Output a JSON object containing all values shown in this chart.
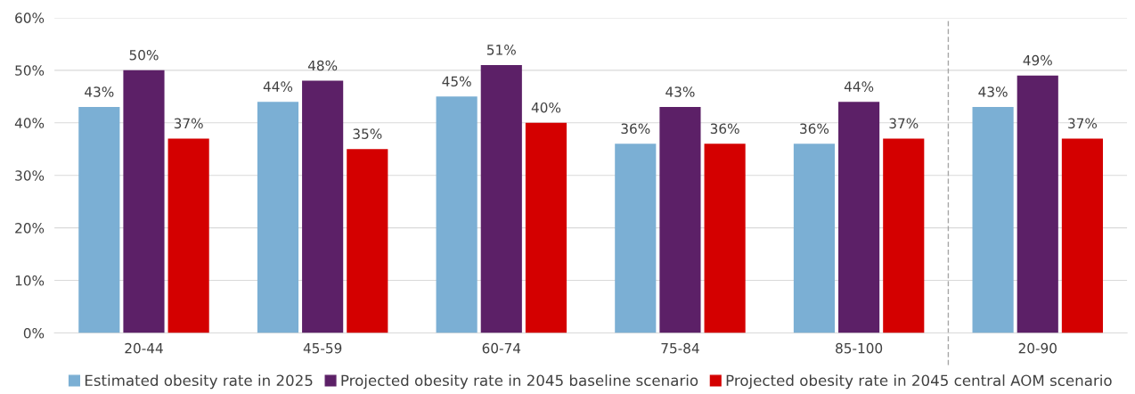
{
  "chart_data": {
    "type": "bar",
    "categories": [
      "20-44",
      "45-59",
      "60-74",
      "75-84",
      "85-100",
      "20-90"
    ],
    "series": [
      {
        "name": "Estimated obesity rate in 2025",
        "color": "#7bafd4",
        "values": [
          43,
          44,
          45,
          36,
          36,
          43
        ],
        "value_labels": [
          "43%",
          "44%",
          "45%",
          "36%",
          "36%",
          "43%"
        ]
      },
      {
        "name": "Projected obesity rate in 2045 baseline scenario",
        "color": "#5c2067",
        "values": [
          50,
          48,
          51,
          43,
          44,
          49
        ],
        "value_labels": [
          "50%",
          "48%",
          "51%",
          "43%",
          "44%",
          "49%"
        ]
      },
      {
        "name": "Projected obesity rate in 2045 central AOM scenario",
        "color": "#d40000",
        "values": [
          37,
          35,
          40,
          36,
          37,
          37
        ],
        "value_labels": [
          "37%",
          "35%",
          "40%",
          "36%",
          "37%",
          "37%"
        ]
      }
    ],
    "ylim": [
      0,
      60
    ],
    "yticks": [
      {
        "value": 0,
        "label": "0%"
      },
      {
        "value": 10,
        "label": "10%"
      },
      {
        "value": 20,
        "label": "20%"
      },
      {
        "value": 30,
        "label": "30%"
      },
      {
        "value": 40,
        "label": "40%"
      },
      {
        "value": 50,
        "label": "50%"
      },
      {
        "value": 60,
        "label": "60%"
      }
    ],
    "grid": "y",
    "legend": "bottom"
  }
}
